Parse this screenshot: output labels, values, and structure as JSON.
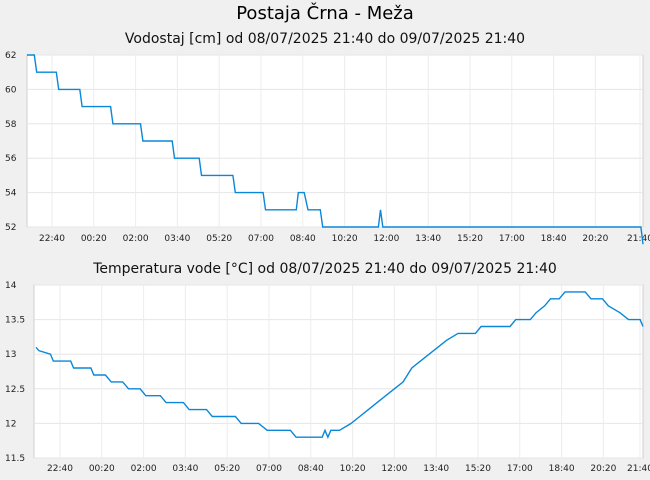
{
  "page_title": "Postaja Črna - Meža",
  "chart_data": [
    {
      "type": "line",
      "title": "Vodostaj [cm] od 08/07/2025 21:40 do 09/07/2025 21:40",
      "xlabel": "",
      "ylabel": "",
      "ylim": [
        52,
        62
      ],
      "yticks": [
        "62",
        "60",
        "58",
        "56",
        "54",
        "52"
      ],
      "xticks": [
        "22:40",
        "00:20",
        "02:00",
        "03:40",
        "05:20",
        "07:00",
        "08:40",
        "10:20",
        "12:00",
        "13:40",
        "15:20",
        "17:00",
        "18:40",
        "20:20",
        "21:40"
      ],
      "xlim": [
        0,
        24
      ],
      "grid": true,
      "color": "#0a87d8",
      "x": [
        0,
        0.25,
        0.33,
        1.0,
        1.08,
        1.8,
        1.88,
        2.85,
        2.93,
        3.87,
        3.95,
        4.95,
        5.03,
        5.87,
        5.95,
        7.02,
        7.1,
        8.05,
        8.13,
        8.93,
        9.0,
        9.18,
        9.25,
        9.45,
        9.58,
        10.0,
        10.08,
        11.83,
        11.9,
        11.98,
        12.05,
        12.13,
        12.2,
        20.85,
        20.93,
        21.0
      ],
      "values": [
        62,
        62,
        61,
        61,
        60,
        60,
        59,
        59,
        58,
        58,
        57,
        57,
        56,
        56,
        55,
        55,
        54,
        54,
        53,
        53,
        53,
        53,
        54,
        54,
        53,
        53,
        52,
        52,
        52,
        52,
        53,
        52,
        52,
        52,
        52,
        51
      ],
      "values_note": ""
    },
    {
      "type": "line",
      "title": "Temperatura vode [°C] od 08/07/2025 21:40 do 09/07/2025 21:40",
      "xlabel": "",
      "ylabel": "",
      "ylim": [
        11.5,
        14
      ],
      "yticks": [
        "14",
        "13.5",
        "13",
        "12.5",
        "12",
        "11.5"
      ],
      "xticks": [
        "22:40",
        "00:20",
        "02:00",
        "03:40",
        "05:20",
        "07:00",
        "08:40",
        "10:20",
        "12:00",
        "13:40",
        "15:20",
        "17:00",
        "18:40",
        "20:20",
        "21:40"
      ],
      "xlim": [
        0,
        24
      ],
      "grid": true,
      "color": "#0a87d8",
      "x": [
        0,
        0.1,
        0.5,
        0.6,
        1.2,
        1.3,
        1.9,
        2.0,
        2.4,
        2.6,
        3.0,
        3.2,
        3.6,
        3.8,
        4.3,
        4.5,
        5.1,
        5.3,
        5.9,
        6.1,
        6.9,
        7.1,
        7.7,
        8.0,
        8.8,
        9.0,
        9.9,
        10.0,
        10.1,
        10.2,
        10.3,
        10.5,
        10.9,
        11.2,
        11.5,
        11.8,
        12.1,
        12.4,
        12.7,
        13.0,
        13.3,
        13.6,
        13.9,
        14.2,
        14.6,
        14.9,
        15.2,
        15.4,
        16.4,
        16.6,
        17.1,
        17.3,
        17.6,
        17.8,
        18.1,
        18.3,
        19.0,
        19.2,
        19.6,
        19.8,
        20.2,
        20.5,
        20.9,
        21.0
      ],
      "values": [
        13.1,
        13.05,
        13.0,
        12.9,
        12.9,
        12.8,
        12.8,
        12.7,
        12.7,
        12.6,
        12.6,
        12.5,
        12.5,
        12.4,
        12.4,
        12.3,
        12.3,
        12.2,
        12.2,
        12.1,
        12.1,
        12.0,
        12.0,
        11.9,
        11.9,
        11.8,
        11.8,
        11.9,
        11.8,
        11.9,
        11.9,
        11.9,
        12.0,
        12.1,
        12.2,
        12.3,
        12.4,
        12.5,
        12.6,
        12.8,
        12.9,
        13.0,
        13.1,
        13.2,
        13.3,
        13.3,
        13.3,
        13.4,
        13.4,
        13.5,
        13.5,
        13.6,
        13.7,
        13.8,
        13.8,
        13.9,
        13.9,
        13.8,
        13.8,
        13.7,
        13.6,
        13.5,
        13.5,
        13.4
      ]
    }
  ]
}
